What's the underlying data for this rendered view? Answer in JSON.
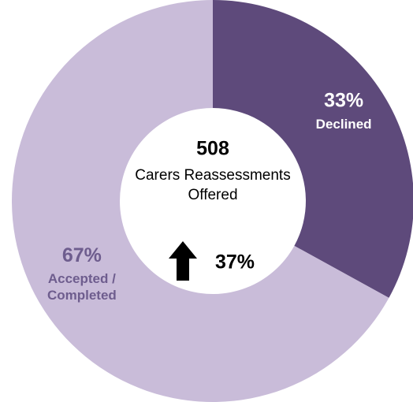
{
  "chart_data": {
    "type": "donut",
    "categories": [
      "Declined",
      "Accepted / Completed"
    ],
    "values": [
      33,
      67
    ],
    "value_labels": [
      "33%",
      "67%"
    ],
    "colors": [
      "#5e4a7b",
      "#c9bcd9"
    ],
    "label_colors": [
      "#ffffff",
      "#6e5d8e"
    ],
    "center_value": 508,
    "center_label": "Carers Reassessments Offered",
    "change_label": "37%"
  }
}
